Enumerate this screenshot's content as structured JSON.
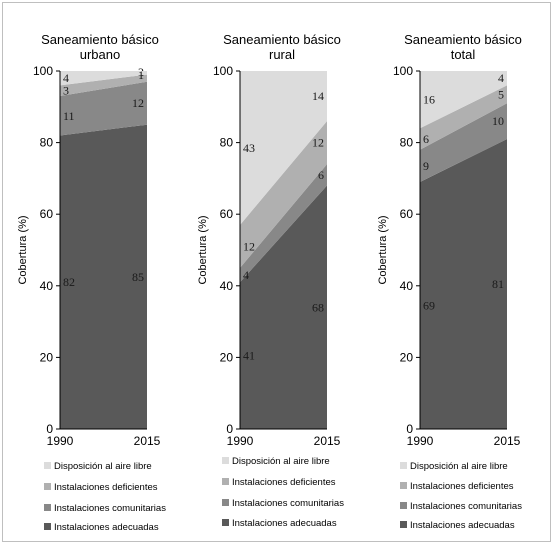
{
  "chart_data": [
    {
      "type": "area",
      "title_lines": [
        "Saneamiento básico",
        "urbano"
      ],
      "ylabel": "Cobertura (%)",
      "ylim": [
        0,
        100
      ],
      "yticks": [
        "0",
        "20",
        "40",
        "60",
        "80",
        "100"
      ],
      "x": [
        "1990",
        "2015"
      ],
      "series": [
        {
          "name": "Instalaciones adecuadas",
          "color": "#595959",
          "values": [
            82,
            85
          ],
          "labels": [
            "82",
            "85"
          ]
        },
        {
          "name": "Instalaciones comunitarias",
          "color": "#888888",
          "values": [
            11,
            12
          ],
          "labels": [
            "11",
            "12"
          ]
        },
        {
          "name": "Instalaciones deficientes",
          "color": "#b0b0b0",
          "values": [
            3,
            2
          ],
          "labels": [
            "3",
            "2"
          ]
        },
        {
          "name": "Disposición al aire libre",
          "color": "#dcdcdc",
          "values": [
            4,
            1
          ],
          "labels": [
            "4",
            "1"
          ]
        }
      ]
    },
    {
      "type": "area",
      "title_lines": [
        "Saneamiento básico",
        "rural"
      ],
      "ylabel": "Cobertura (%)",
      "ylim": [
        0,
        100
      ],
      "yticks": [
        "0",
        "20",
        "40",
        "60",
        "80",
        "100"
      ],
      "x": [
        "1990",
        "2015"
      ],
      "series": [
        {
          "name": "Instalaciones adecuadas",
          "color": "#595959",
          "values": [
            41,
            68
          ],
          "labels": [
            "41",
            "68"
          ]
        },
        {
          "name": "Instalaciones comunitarias",
          "color": "#888888",
          "values": [
            4,
            6
          ],
          "labels": [
            "4",
            "6"
          ]
        },
        {
          "name": "Instalaciones deficientes",
          "color": "#b0b0b0",
          "values": [
            12,
            12
          ],
          "labels": [
            "12",
            "12"
          ]
        },
        {
          "name": "Disposición al aire libre",
          "color": "#dcdcdc",
          "values": [
            43,
            14
          ],
          "labels": [
            "43",
            "14"
          ]
        }
      ]
    },
    {
      "type": "area",
      "title_lines": [
        "Saneamiento básico",
        "total"
      ],
      "ylabel": "Cobertura (%)",
      "ylim": [
        0,
        100
      ],
      "yticks": [
        "0",
        "20",
        "40",
        "60",
        "80",
        "100"
      ],
      "x": [
        "1990",
        "2015"
      ],
      "series": [
        {
          "name": "Instalaciones adecuadas",
          "color": "#595959",
          "values": [
            69,
            81
          ],
          "labels": [
            "69",
            "81"
          ]
        },
        {
          "name": "Instalaciones comunitarias",
          "color": "#888888",
          "values": [
            9,
            10
          ],
          "labels": [
            "9",
            "10"
          ]
        },
        {
          "name": "Instalaciones deficientes",
          "color": "#b0b0b0",
          "values": [
            6,
            5
          ],
          "labels": [
            "6",
            "5"
          ]
        },
        {
          "name": "Disposición al aire libre",
          "color": "#dcdcdc",
          "values": [
            16,
            4
          ],
          "labels": [
            "16",
            "4"
          ]
        }
      ]
    }
  ],
  "legend": {
    "position": "bottom",
    "items": [
      {
        "label": "Disposición al aire libre",
        "color": "#dcdcdc"
      },
      {
        "label": "Instalaciones deficientes",
        "color": "#b0b0b0"
      },
      {
        "label": "Instalaciones comunitarias",
        "color": "#888888"
      },
      {
        "label": "Instalaciones adecuadas",
        "color": "#595959"
      }
    ]
  }
}
